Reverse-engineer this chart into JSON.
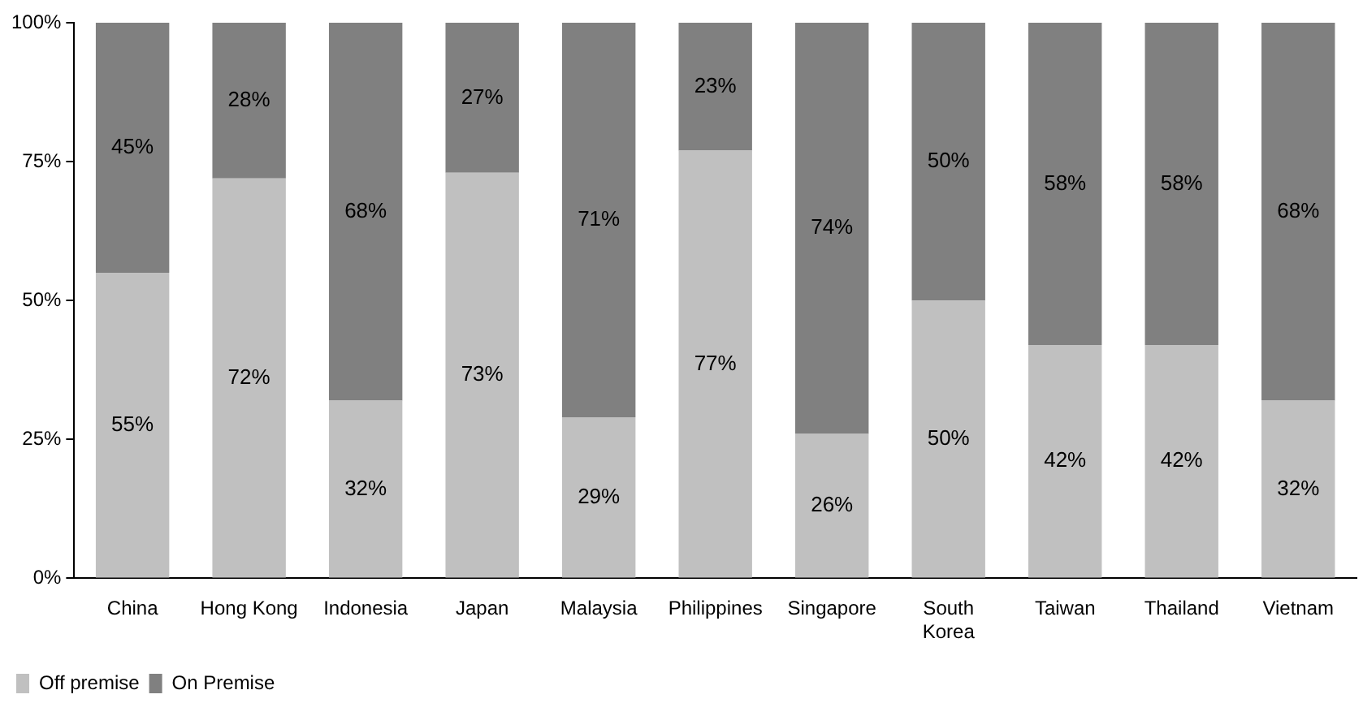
{
  "chart_data": {
    "type": "bar",
    "stacked": true,
    "categories": [
      "China",
      "Hong Kong",
      "Indonesia",
      "Japan",
      "Malaysia",
      "Philippines",
      "Singapore",
      "South Korea",
      "Taiwan",
      "Thailand",
      "Vietnam"
    ],
    "series": [
      {
        "name": "Off premise",
        "color": "#c0c0c0",
        "values": [
          55,
          72,
          32,
          73,
          29,
          77,
          26,
          50,
          42,
          42,
          32
        ],
        "value_labels": [
          "55%",
          "72%",
          "32%",
          "73%",
          "29%",
          "77%",
          "26%",
          "50%",
          "42%",
          "42%",
          "32%"
        ]
      },
      {
        "name": "On Premise",
        "color": "#808080",
        "values": [
          45,
          28,
          68,
          27,
          71,
          23,
          74,
          50,
          58,
          58,
          68
        ],
        "value_labels": [
          "45%",
          "28%",
          "68%",
          "27%",
          "71%",
          "23%",
          "74%",
          "50%",
          "58%",
          "58%",
          "68%"
        ]
      }
    ],
    "ylim": [
      0,
      100
    ],
    "yticks": [
      {
        "value": 0,
        "label": "0%"
      },
      {
        "value": 25,
        "label": "25%"
      },
      {
        "value": 50,
        "label": "50%"
      },
      {
        "value": 75,
        "label": "75%"
      },
      {
        "value": 100,
        "label": "100%"
      }
    ],
    "grid": false,
    "legend": "bottom left"
  }
}
